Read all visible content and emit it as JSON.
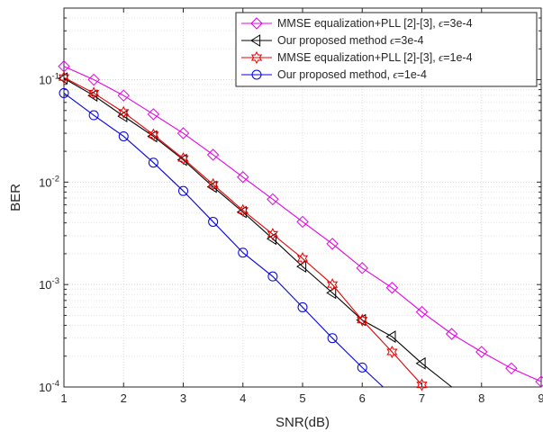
{
  "chart_data": {
    "type": "line",
    "title": "",
    "xlabel": "SNR(dB)",
    "ylabel": "BER",
    "xlim": [
      1,
      9
    ],
    "ylim": [
      0.0001,
      0.5
    ],
    "yscale": "log",
    "grid": true,
    "minor_grid": true,
    "legend_position": "top-right",
    "x_ticks": [
      "1",
      "2",
      "3",
      "4",
      "5",
      "6",
      "7",
      "8",
      "9"
    ],
    "y_ticks": [
      {
        "value": 0.1,
        "base": "10",
        "exp": "-1"
      },
      {
        "value": 0.01,
        "base": "10",
        "exp": "-2"
      },
      {
        "value": 0.001,
        "base": "10",
        "exp": "-3"
      },
      {
        "value": 0.0001,
        "base": "10",
        "exp": "-4"
      }
    ],
    "series": [
      {
        "name_main": "MMSE equalization+PLL [2]-[3], ",
        "name_eps": "ϵ",
        "name_tail": "=3e-4",
        "color": "#e600e6",
        "marker": "diamond",
        "x": [
          1,
          1.5,
          2,
          2.5,
          3,
          3.5,
          4,
          4.5,
          5,
          5.5,
          6,
          6.5,
          7,
          7.5,
          8,
          8.5,
          9
        ],
        "y": [
          0.135,
          0.1,
          0.07,
          0.046,
          0.03,
          0.0185,
          0.0112,
          0.0068,
          0.0041,
          0.0025,
          0.00145,
          0.00093,
          0.00054,
          0.00033,
          0.00022,
          0.000152,
          0.000113
        ]
      },
      {
        "name_main": "Our proposed method ",
        "name_eps": "ϵ",
        "name_tail": "=3e-4",
        "color": "#000000",
        "marker": "triangle-left",
        "x": [
          1,
          1.5,
          2,
          2.5,
          3,
          3.5,
          4,
          4.5,
          5,
          5.5,
          6,
          6.5,
          7,
          7.5
        ],
        "y": [
          0.103,
          0.07,
          0.044,
          0.028,
          0.0165,
          0.009,
          0.0051,
          0.0028,
          0.0015,
          0.00083,
          0.00045,
          0.00031,
          0.00017,
          0.0001
        ]
      },
      {
        "name_main": "MMSE equalization+PLL [2]-[3], ",
        "name_eps": "ϵ",
        "name_tail": "=1e-4",
        "color": "#e60000",
        "marker": "hexagram",
        "x": [
          1,
          1.5,
          2,
          2.5,
          3,
          3.5,
          4,
          4.5,
          5,
          5.5,
          6,
          6.5,
          7
        ],
        "y": [
          0.105,
          0.074,
          0.048,
          0.029,
          0.017,
          0.0095,
          0.0053,
          0.0031,
          0.0018,
          0.001,
          0.00045,
          0.00022,
          0.000105
        ]
      },
      {
        "name_main": "Our proposed method, ",
        "name_eps": "ϵ",
        "name_tail": "=1e-4",
        "color": "#0000e6",
        "marker": "circle",
        "x": [
          1,
          1.5,
          2,
          2.5,
          3,
          3.5,
          4,
          4.5,
          5,
          5.5,
          6,
          6.35
        ],
        "y": [
          0.074,
          0.045,
          0.028,
          0.0155,
          0.0082,
          0.0041,
          0.00205,
          0.0012,
          0.0006,
          0.0003,
          0.000155,
          0.0001
        ]
      }
    ]
  }
}
